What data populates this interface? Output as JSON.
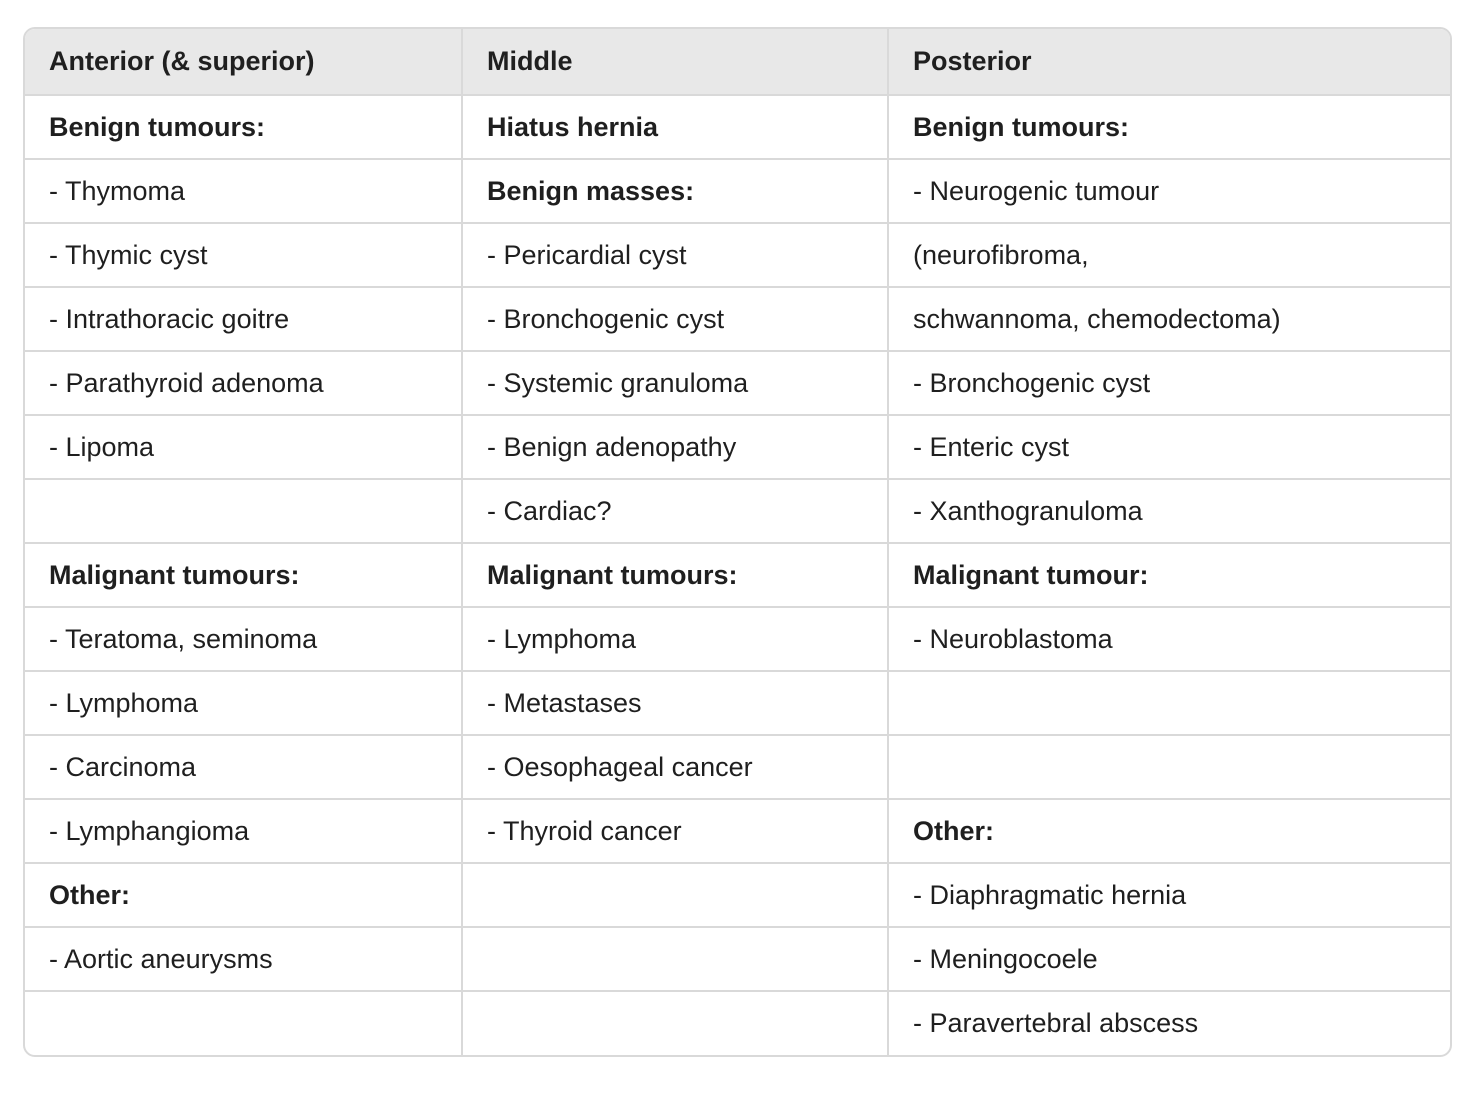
{
  "table": {
    "headers": [
      "Anterior (& superior)",
      "Middle",
      "Posterior"
    ],
    "rows": [
      [
        {
          "text": "Benign tumours:",
          "bold": true
        },
        {
          "text": "Hiatus hernia",
          "bold": true
        },
        {
          "text": "Benign tumours:",
          "bold": true
        }
      ],
      [
        {
          "text": "- Thymoma"
        },
        {
          "text": "Benign masses:",
          "bold": true
        },
        {
          "text": "- Neurogenic tumour"
        }
      ],
      [
        {
          "text": "- Thymic cyst"
        },
        {
          "text": "- Pericardial cyst"
        },
        {
          "text": "(neurofibroma,"
        }
      ],
      [
        {
          "text": "- Intrathoracic goitre"
        },
        {
          "text": "- Bronchogenic cyst"
        },
        {
          "text": "schwannoma, chemodectoma)"
        }
      ],
      [
        {
          "text": "- Parathyroid adenoma"
        },
        {
          "text": "- Systemic granuloma"
        },
        {
          "text": "- Bronchogenic cyst"
        }
      ],
      [
        {
          "text": "- Lipoma"
        },
        {
          "text": "- Benign adenopathy"
        },
        {
          "text": "- Enteric cyst"
        }
      ],
      [
        {
          "text": ""
        },
        {
          "text": "- Cardiac?"
        },
        {
          "text": "- Xanthogranuloma"
        }
      ],
      [
        {
          "text": "Malignant tumours:",
          "bold": true
        },
        {
          "text": "Malignant tumours:",
          "bold": true
        },
        {
          "text": "Malignant tumour:",
          "bold": true
        }
      ],
      [
        {
          "text": "- Teratoma, seminoma"
        },
        {
          "text": "- Lymphoma"
        },
        {
          "text": "- Neuroblastoma"
        }
      ],
      [
        {
          "text": "- Lymphoma"
        },
        {
          "text": "- Metastases"
        },
        {
          "text": ""
        }
      ],
      [
        {
          "text": "- Carcinoma"
        },
        {
          "text": "- Oesophageal cancer"
        },
        {
          "text": ""
        }
      ],
      [
        {
          "text": "- Lymphangioma"
        },
        {
          "text": "- Thyroid cancer"
        },
        {
          "text": "Other:",
          "bold": true
        }
      ],
      [
        {
          "text": "Other:",
          "bold": true
        },
        {
          "text": ""
        },
        {
          "text": "- Diaphragmatic hernia"
        }
      ],
      [
        {
          "text": "- Aortic aneurysms"
        },
        {
          "text": ""
        },
        {
          "text": "- Meningocoele"
        }
      ],
      [
        {
          "text": ""
        },
        {
          "text": ""
        },
        {
          "text": "- Paravertebral abscess"
        }
      ]
    ]
  }
}
